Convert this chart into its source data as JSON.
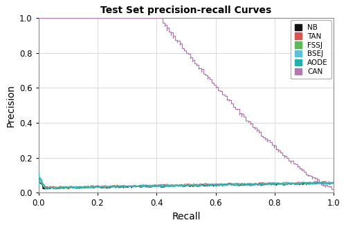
{
  "title": "Test Set precision-recall Curves",
  "xlabel": "Recall",
  "ylabel": "Precision",
  "xlim": [
    0.0,
    1.0
  ],
  "ylim": [
    0.0,
    1.0
  ],
  "legend_labels": [
    "NB",
    "TAN",
    "FSSJ",
    "BSEJ",
    "AODE",
    "CAN"
  ],
  "legend_colors": [
    "#111111",
    "#d9534f",
    "#5cb85c",
    "#5bc0de",
    "#20b2aa",
    "#b07aaa"
  ],
  "curve_colors": {
    "NB": "#111111",
    "TAN": "#d9534f",
    "FSSJ": "#5cb85c",
    "BSEJ": "#5bc0de",
    "AODE": "#20b2aa",
    "CAN": "#b07aaa"
  },
  "background_color": "#ffffff",
  "plot_bg": "#f5f5f5"
}
